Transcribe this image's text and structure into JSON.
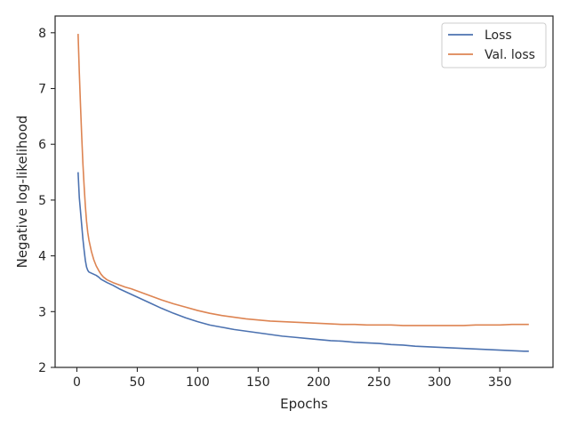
{
  "chart_data": {
    "type": "line",
    "title": "",
    "xlabel": "Epochs",
    "ylabel": "Negative log-likelihood",
    "xlim": [
      -18,
      394
    ],
    "ylim": [
      2,
      8.3
    ],
    "xticks": [
      0,
      50,
      100,
      150,
      200,
      250,
      300,
      350
    ],
    "yticks": [
      2,
      3,
      4,
      5,
      6,
      7,
      8
    ],
    "grid": false,
    "legend": "top-right",
    "series": [
      {
        "name": "Loss",
        "color": "#4c72b0",
        "x": [
          1,
          2,
          3,
          4,
          5,
          6,
          7,
          8,
          9,
          10,
          12,
          14,
          16,
          18,
          20,
          25,
          30,
          35,
          40,
          45,
          50,
          60,
          70,
          80,
          90,
          100,
          110,
          120,
          130,
          140,
          150,
          160,
          170,
          180,
          190,
          200,
          210,
          220,
          230,
          240,
          250,
          260,
          270,
          280,
          290,
          300,
          310,
          320,
          330,
          340,
          350,
          360,
          370,
          374
        ],
        "values": [
          5.5,
          5.05,
          4.8,
          4.55,
          4.3,
          4.1,
          3.92,
          3.8,
          3.74,
          3.71,
          3.69,
          3.67,
          3.65,
          3.62,
          3.58,
          3.52,
          3.47,
          3.41,
          3.36,
          3.31,
          3.26,
          3.16,
          3.06,
          2.97,
          2.89,
          2.82,
          2.76,
          2.72,
          2.68,
          2.65,
          2.62,
          2.59,
          2.56,
          2.54,
          2.52,
          2.5,
          2.48,
          2.47,
          2.45,
          2.44,
          2.43,
          2.41,
          2.4,
          2.38,
          2.37,
          2.36,
          2.35,
          2.34,
          2.33,
          2.32,
          2.31,
          2.3,
          2.29,
          2.29
        ]
      },
      {
        "name": "Val. loss",
        "color": "#dd8452",
        "x": [
          1,
          2,
          3,
          4,
          5,
          6,
          7,
          8,
          9,
          10,
          12,
          14,
          16,
          18,
          20,
          22,
          25,
          30,
          35,
          40,
          45,
          50,
          60,
          70,
          80,
          90,
          100,
          110,
          120,
          130,
          140,
          150,
          160,
          170,
          180,
          190,
          200,
          210,
          220,
          230,
          240,
          250,
          260,
          270,
          280,
          290,
          300,
          310,
          320,
          330,
          340,
          350,
          360,
          370,
          374
        ],
        "values": [
          7.98,
          7.3,
          6.7,
          6.15,
          5.65,
          5.25,
          4.9,
          4.62,
          4.42,
          4.28,
          4.08,
          3.93,
          3.82,
          3.74,
          3.67,
          3.62,
          3.57,
          3.52,
          3.48,
          3.44,
          3.41,
          3.37,
          3.29,
          3.21,
          3.14,
          3.08,
          3.02,
          2.97,
          2.93,
          2.9,
          2.87,
          2.85,
          2.83,
          2.82,
          2.81,
          2.8,
          2.79,
          2.78,
          2.77,
          2.77,
          2.76,
          2.76,
          2.76,
          2.75,
          2.75,
          2.75,
          2.75,
          2.75,
          2.75,
          2.76,
          2.76,
          2.76,
          2.77,
          2.77,
          2.77
        ]
      }
    ]
  }
}
